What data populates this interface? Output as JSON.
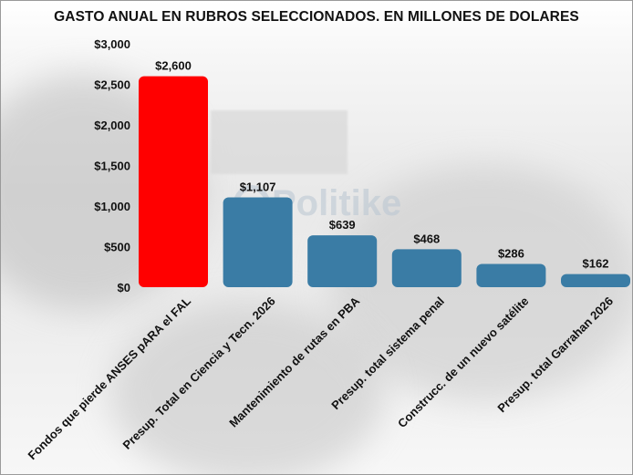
{
  "chart_data": {
    "type": "bar",
    "title": "GASTO ANUAL EN RUBROS SELECCIONADOS. EN MILLONES DE DOLARES",
    "xlabel": "",
    "ylabel": "",
    "ylim": [
      0,
      3000
    ],
    "yticks": [
      {
        "value": 0,
        "label": "$0"
      },
      {
        "value": 500,
        "label": "$500"
      },
      {
        "value": 1000,
        "label": "$1,000"
      },
      {
        "value": 1500,
        "label": "$1,500"
      },
      {
        "value": 2000,
        "label": "$2,000"
      },
      {
        "value": 2500,
        "label": "$2,500"
      },
      {
        "value": 3000,
        "label": "$3,000"
      }
    ],
    "grid": false,
    "legend": "none",
    "categories": [
      "Fondos que pierde ANSES pARA el FAL",
      "Presup. Total en Ciencia y Tecn. 2026",
      "Mantenimiento de rutas en PBA",
      "Presup. total sistema penal",
      "Construcc. de un nuevo satélite",
      "Presup. total Garrahan 2026"
    ],
    "values": [
      2600,
      1107,
      639,
      468,
      286,
      162
    ],
    "data_labels": [
      "$2,600",
      "$1,107",
      "$639",
      "$468",
      "$286",
      "$162"
    ],
    "colors": [
      "#ff0000",
      "#3a7ca5",
      "#3a7ca5",
      "#3a7ca5",
      "#3a7ca5",
      "#3a7ca5"
    ]
  },
  "watermark": {
    "text": "Politike"
  }
}
